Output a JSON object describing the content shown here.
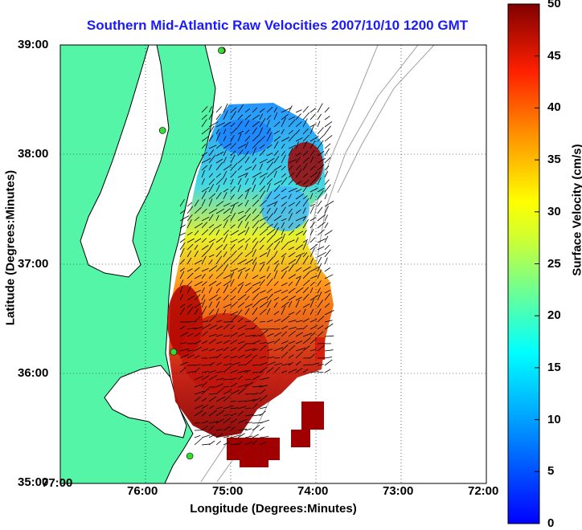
{
  "title": "Southern Mid-Atlantic Raw Velocities 2007/10/10 1200 GMT",
  "map": {
    "xlabel": "Longitude (Degrees:Minutes)",
    "ylabel": "Latitude (Degrees:Minutes)",
    "x_ticks": [
      "77:00",
      "76:00",
      "75:00",
      "74:00",
      "73:00",
      "72:00"
    ],
    "y_ticks": [
      "39:00",
      "38:00",
      "37:00",
      "36:00",
      "35:00"
    ],
    "lon_range": [
      -77,
      -72
    ],
    "lat_range": [
      35,
      39
    ],
    "grid": "dotted",
    "colors": {
      "land": "#55f5a8",
      "coast": "#000000",
      "bathymetry": "#a0a0a0",
      "site_green": "#33dd33",
      "site_red": "#ee2222"
    }
  },
  "colorbar": {
    "label": "Surface Velocity (cm/s)",
    "ticks": [
      "50",
      "45",
      "40",
      "35",
      "30",
      "25",
      "20",
      "15",
      "10",
      "5",
      "0"
    ],
    "range": [
      0,
      50
    ],
    "colormap": "jet"
  },
  "sites": [
    {
      "lon": -75.1,
      "lat": 38.95,
      "color": "red"
    },
    {
      "lon": -75.11,
      "lat": 38.95,
      "color": "green"
    },
    {
      "lon": -75.8,
      "lat": 38.22,
      "color": "green"
    },
    {
      "lon": -75.67,
      "lat": 36.2,
      "color": "green"
    },
    {
      "lon": -75.48,
      "lat": 35.25,
      "color": "green"
    }
  ]
}
